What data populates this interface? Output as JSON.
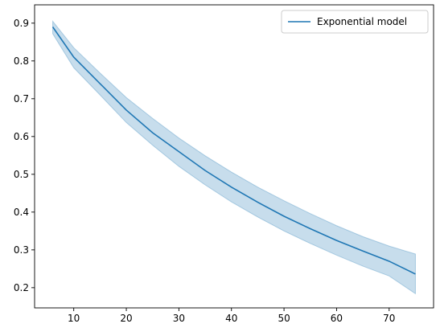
{
  "chart_data": {
    "type": "line",
    "title": "",
    "xlabel": "",
    "ylabel": "",
    "xlim": [
      2.55,
      78.45
    ],
    "ylim": [
      0.1465,
      0.9485
    ],
    "x_ticks": [
      10,
      20,
      30,
      40,
      50,
      60,
      70
    ],
    "y_ticks": [
      0.2,
      0.3,
      0.4,
      0.5,
      0.6,
      0.7,
      0.8,
      0.9
    ],
    "grid": false,
    "legend_position": "top-right",
    "series": [
      {
        "name": "Exponential model",
        "color": "#1f77b4",
        "x": [
          6,
          10,
          15,
          20,
          25,
          30,
          35,
          40,
          45,
          50,
          55,
          60,
          65,
          70,
          75
        ],
        "y": [
          0.89,
          0.81,
          0.74,
          0.67,
          0.61,
          0.56,
          0.51,
          0.466,
          0.426,
          0.389,
          0.356,
          0.325,
          0.297,
          0.27,
          0.236
        ],
        "band_upper": [
          0.905,
          0.835,
          0.768,
          0.703,
          0.648,
          0.596,
          0.549,
          0.506,
          0.466,
          0.43,
          0.396,
          0.364,
          0.335,
          0.31,
          0.289
        ],
        "band_lower": [
          0.872,
          0.782,
          0.71,
          0.637,
          0.577,
          0.521,
          0.472,
          0.427,
          0.387,
          0.35,
          0.317,
          0.286,
          0.257,
          0.231,
          0.184
        ],
        "band_color": "#1f77b4"
      }
    ]
  }
}
